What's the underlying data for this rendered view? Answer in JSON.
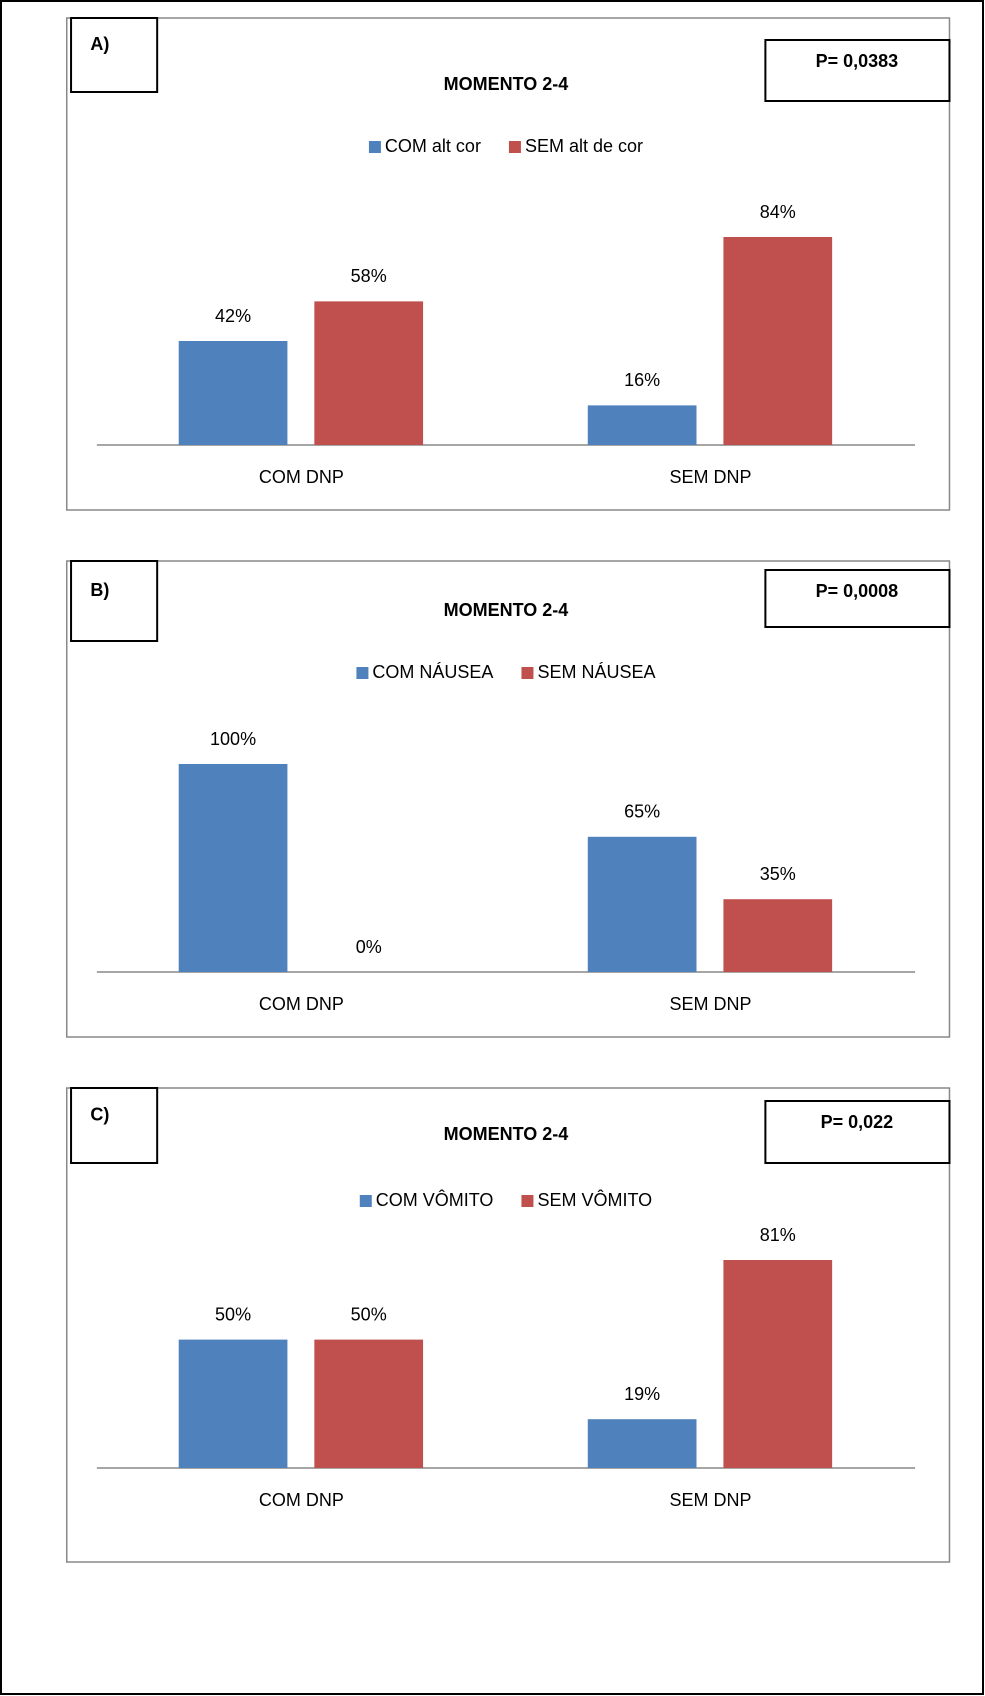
{
  "chart_data": [
    {
      "type": "bar",
      "panel_label": "A)",
      "title": "MOMENTO 2-4",
      "annotation": "P= 0,0383",
      "legend": "top",
      "categories": [
        "COM DNP",
        "SEM DNP"
      ],
      "series": [
        {
          "name": "COM alt cor",
          "color": "#4f81bd",
          "values": [
            42,
            16
          ],
          "value_labels": [
            "42%",
            "16%"
          ]
        },
        {
          "name": "SEM alt de cor",
          "color": "#c0504d",
          "values": [
            58,
            84
          ],
          "value_labels": [
            "58%",
            "84%"
          ]
        }
      ]
    },
    {
      "type": "bar",
      "panel_label": "B)",
      "title": "MOMENTO 2-4",
      "annotation": "P= 0,0008",
      "legend": "top",
      "categories": [
        "COM DNP",
        "SEM DNP"
      ],
      "series": [
        {
          "name": "COM NÁUSEA",
          "color": "#4f81bd",
          "values": [
            100,
            65
          ],
          "value_labels": [
            "100%",
            "65%"
          ]
        },
        {
          "name": "SEM NÁUSEA",
          "color": "#c0504d",
          "values": [
            0,
            35
          ],
          "value_labels": [
            "0%",
            "35%"
          ]
        }
      ]
    },
    {
      "type": "bar",
      "panel_label": "C)",
      "title": "MOMENTO 2-4",
      "annotation": "P= 0,022",
      "legend": "top",
      "categories": [
        "COM DNP",
        "SEM DNP"
      ],
      "series": [
        {
          "name": "COM VÔMITO",
          "color": "#4f81bd",
          "values": [
            50,
            19
          ],
          "value_labels": [
            "50%",
            "19%"
          ]
        },
        {
          "name": "SEM VÔMITO",
          "color": "#c0504d",
          "values": [
            50,
            81
          ],
          "value_labels": [
            "50%",
            "81%"
          ]
        }
      ]
    }
  ]
}
